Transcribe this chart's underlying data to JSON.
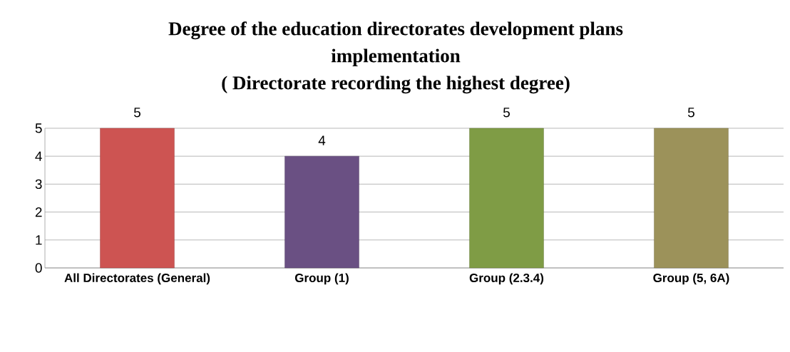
{
  "chart_data": {
    "type": "bar",
    "title": "Degree of the education directorates development plans implementation",
    "subtitle": "( Directorate recording the highest degree)",
    "categories": [
      "All Directorates (General)",
      "Group (1)",
      "Group (2.3.4)",
      "Group (5, 6A)"
    ],
    "values": [
      5,
      4,
      5,
      5
    ],
    "colors": [
      "#cd5452",
      "#6a5083",
      "#7f9c45",
      "#9c925a"
    ],
    "ylim": [
      0,
      5
    ],
    "yticks": [
      0,
      1,
      2,
      3,
      4,
      5
    ],
    "grid": "y",
    "data_labels": true
  }
}
